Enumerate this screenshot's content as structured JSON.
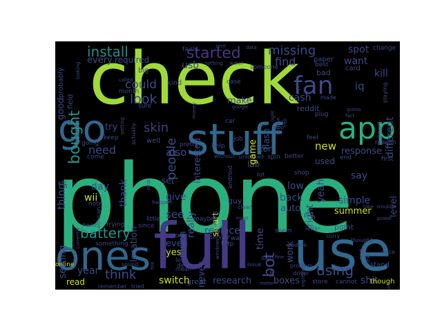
{
  "words": {
    "check": "check",
    "phone": "phone",
    "full": "full",
    "use": "use",
    "ones": "ones",
    "stuff": "stuff",
    "go": "go",
    "app": "app",
    "fan": "fan",
    "install": "install",
    "started": "started",
    "missing": "missing",
    "bought": "bought",
    "look": "look",
    "could": "could",
    "battery": "battery",
    "think": "think",
    "using": "using",
    "skin": "skin",
    "people": "people",
    "need": "need",
    "new": "new",
    "spot": "spot",
    "find": "find",
    "usb": "usb",
    "flash": "flash",
    "game": "game",
    "make": "make",
    "interested": "interested",
    "time": "time",
    "bot": "bot",
    "right": "right",
    "yeah": "yeah",
    "say": "say",
    "simple": "simple",
    "summer": "summer",
    "replace": "replace",
    "switch": "switch",
    "research": "research",
    "boxes": "boxes",
    "shit": "shit",
    "response": "response",
    "different": "different",
    "iq": "iq",
    "kill": "kill",
    "cash": "cash",
    "want": "want",
    "every": "every",
    "required": "required",
    "good": "good",
    "probably": "probably",
    "thing": "thing",
    "setting": "setting",
    "year": "year",
    "read": "read",
    "wii": "wii",
    "day": "day",
    "thank": "thank",
    "location": "location",
    "also": "also",
    "much": "much",
    "really": "really",
    "give": "give",
    "see": "see",
    "set": "set",
    "even": "even",
    "yes": "yes",
    "smart": "smart",
    "never": "never",
    "lab": "lab",
    "ton": "ton",
    "used": "used",
    "low": "low",
    "back": "back",
    "auto": "auto",
    "work": "work",
    "level": "level",
    "point": "point",
    "stand": "stand",
    "though": "though",
    "great": "great",
    "field": "field",
    "try": "try",
    "big": "big",
    "month": "month",
    "sure": "sure",
    "well": "well",
    "pretty": "pretty",
    "kind": "kind",
    "case": "case",
    "reddit": "reddit",
    "bad": "bad",
    "paper": "paper",
    "card": "card",
    "change": "change",
    "playing": "playing",
    "support": "support",
    "reason": "reason",
    "first": "first",
    "keep": "keep",
    "going": "going",
    "come": "come",
    "etc": "etc",
    "note": "note",
    "little": "little",
    "happen": "happen",
    "since": "since",
    "trying": "trying",
    "head": "head",
    "something": "something",
    "post": "post",
    "device": "device",
    "mean": "mean",
    "love": "love",
    "service": "service",
    "way": "way",
    "http": "http",
    "said": "said",
    "issue": "issue",
    "seem": "seem",
    "update": "update",
    "problem": "problem",
    "store": "store",
    "cannot": "cannot",
    "driver": "driver",
    "sorry": "sorry",
    "thought": "thought",
    "price": "price",
    "power": "power",
    "trouble": "trouble",
    "online": "online",
    "sound": "sound",
    "remember": "remember",
    "tried": "tried",
    "guy": "guy",
    "lot": "lot",
    "shop": "shop",
    "better": "better",
    "spin": "spin",
    "unlocked": "unlocked",
    "without": "without",
    "android": "android",
    "help": "help",
    "job": "job",
    "car": "car",
    "google": "google",
    "someone": "someone",
    "nothing": "nothing",
    "water": "water",
    "fairly": "fairly",
    "sent": "sent",
    "data": "data",
    "called": "called",
    "guess": "guess",
    "fact": "fact",
    "feel": "feel",
    "best": "best",
    "made": "made",
    "end": "end",
    "plug": "plug",
    "put": "put",
    "man": "man",
    "clean": "clean",
    "maybe": "maybe",
    "money": "money",
    "stop": "stop",
    "letter": "letter",
    "fine": "fine",
    "ago": "ago",
    "bar": "bar",
    "light": "light",
    "currently": "currently",
    "looking": "looking",
    "getting": "getting",
    "although": "although",
    "anything": "anything",
    "amp": "amp",
    "fire": "fire",
    "version": "version",
    "next": "next",
    "text": "text",
    "take": "take",
    "actually": "actually",
    "meter": "meter",
    "ingredient": "ingredient",
    "cell": "cell",
    "windows": "windows",
    "old": "old"
  },
  "colors": {
    "lime": "#a0da39",
    "teal": "#2ab07f",
    "blue": "#31688e",
    "indigo": "#443983",
    "purple": "#3b2f74",
    "yellow": "#d0e11c",
    "cyan": "#21918c",
    "green": "#4ac16d",
    "slate": "#3e4a89"
  }
}
